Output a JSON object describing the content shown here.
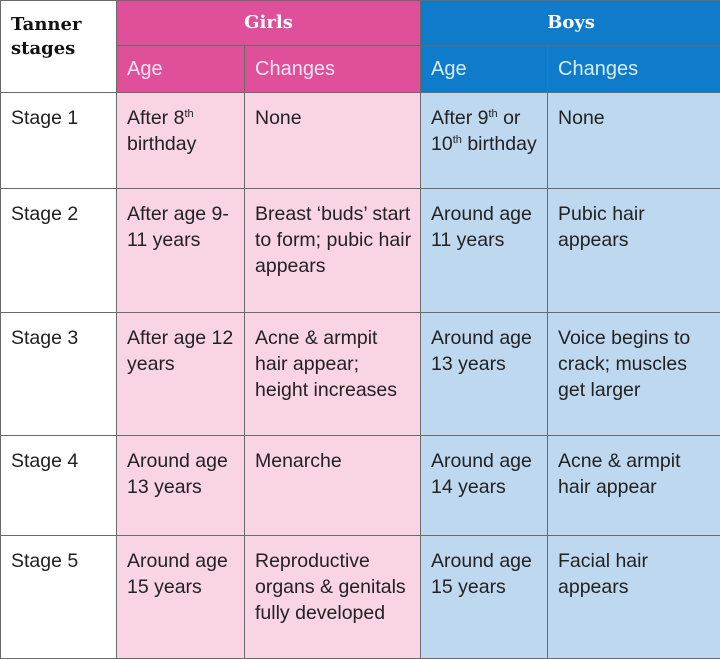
{
  "header": {
    "tanner_stages": "Tanner stages",
    "girls": "Girls",
    "boys": "Boys",
    "girls_age": "Age",
    "girls_changes": "Changes",
    "boys_age": "Age",
    "boys_changes": "Changes"
  },
  "colors": {
    "girls_header": "#e0509a",
    "girls_cell": "#f8d4e5",
    "boys_header": "#0f7ccb",
    "boys_cell": "#bed8ef"
  },
  "rows": [
    {
      "stage": "Stage 1",
      "girls_age": {
        "pre": "After 8",
        "sup": "th",
        "post": " birthday"
      },
      "girls_changes": "None",
      "boys_age": {
        "pre": "After 9",
        "sup": "th",
        "mid": " or 10",
        "sup2": "th",
        "post": " birthday"
      },
      "boys_changes": "None"
    },
    {
      "stage": "Stage 2",
      "girls_age": {
        "pre": "After age 9-11 years"
      },
      "girls_changes": "Breast ‘buds’ start to form; pubic hair appears",
      "boys_age": {
        "pre": "Around age 11 years"
      },
      "boys_changes": "Pubic hair appears"
    },
    {
      "stage": "Stage 3",
      "girls_age": {
        "pre": "After age 12 years"
      },
      "girls_changes": "Acne & armpit hair appear; height increases",
      "boys_age": {
        "pre": "Around age 13 years"
      },
      "boys_changes": "Voice begins to crack; muscles get larger"
    },
    {
      "stage": "Stage 4",
      "girls_age": {
        "pre": "Around age 13 years"
      },
      "girls_changes": "Menarche",
      "boys_age": {
        "pre": "Around age 14 years"
      },
      "boys_changes": "Acne & armpit hair appear"
    },
    {
      "stage": "Stage 5",
      "girls_age": {
        "pre": "Around age 15 years"
      },
      "girls_changes": "Reproductive organs & genitals fully developed",
      "boys_age": {
        "pre": "Around age 15 years"
      },
      "boys_changes": "Facial hair appears"
    }
  ]
}
